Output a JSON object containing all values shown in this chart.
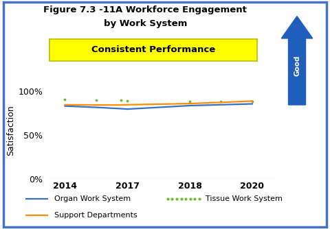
{
  "title_line1": "Figure 7.3 -11A Workforce Engagement",
  "title_line2": "by Work System",
  "subtitle": "Consistent Performance",
  "ylabel": "Satisfaction",
  "x_tick_labels": [
    "2014",
    "2017",
    "2018",
    "2020"
  ],
  "x_positions": [
    0,
    1,
    2,
    3
  ],
  "ylim": [
    0.0,
    1.1
  ],
  "yticks": [
    0.0,
    0.5,
    1.0
  ],
  "ytick_labels": [
    "0%",
    "50%",
    "100%"
  ],
  "organ_x": [
    0,
    0.5,
    0.9,
    1.0,
    2.0,
    2.5,
    3.0
  ],
  "organ_y": [
    0.83,
    0.815,
    0.8,
    0.795,
    0.835,
    0.845,
    0.855
  ],
  "tissue_x": [
    0,
    0.5,
    0.9,
    1.0,
    2.0,
    2.5,
    3.0
  ],
  "tissue_y": [
    0.905,
    0.9,
    0.895,
    0.893,
    0.885,
    0.882,
    0.88
  ],
  "support_x": [
    0,
    0.5,
    0.9,
    1.0,
    2.0,
    2.5,
    3.0
  ],
  "support_y": [
    0.845,
    0.842,
    0.842,
    0.845,
    0.858,
    0.872,
    0.887
  ],
  "organ_color": "#3470C8",
  "tissue_color": "#70BB30",
  "support_color": "#FF8C00",
  "border_color": "#4472C4",
  "arrow_color": "#1F5FBB",
  "subtitle_bg": "#FFFF00",
  "subtitle_border": "#BBBB00",
  "subtitle_fg": "#000000",
  "bg_color": "#FFFFFF",
  "organ_label": "Organ Work System",
  "tissue_label": "Tissue Work System",
  "support_label": "Support Departments"
}
